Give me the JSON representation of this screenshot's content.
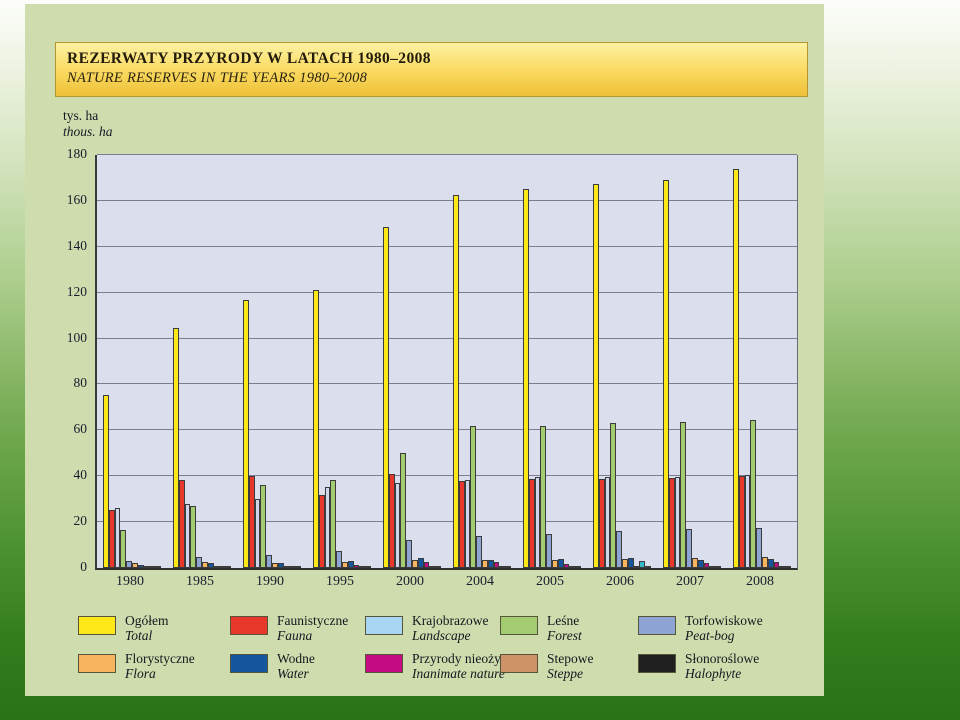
{
  "header": {
    "title_pl": "REZERWATY PRZYRODY W LATACH 1980–2008",
    "title_en": "NATURE RESERVES IN THE YEARS 1980–2008"
  },
  "chart_data": {
    "type": "bar",
    "ylabel_pl": "tys. ha",
    "ylabel_en": "thous. ha",
    "ylim": [
      0,
      180
    ],
    "ytick_step": 20,
    "grid": true,
    "legend_position": "bottom",
    "plot_background": "#dbdfed",
    "categories": [
      "1980",
      "1985",
      "1990",
      "1995",
      "2000",
      "2004",
      "2005",
      "2006",
      "2007",
      "2008"
    ],
    "series": [
      {
        "key": "total",
        "name_pl": "Ogółem",
        "name_en": "Total",
        "color": "#ffe817",
        "values": [
          75.3,
          104.5,
          117.0,
          121.2,
          148.7,
          162.5,
          165.2,
          167.5,
          169.0,
          173.8
        ]
      },
      {
        "key": "fauna",
        "name_pl": "Faunistyczne",
        "name_en": "Fauna",
        "color": "#e8382b",
        "values": [
          25.5,
          38.5,
          40.0,
          32.0,
          41.0,
          38.0,
          39.0,
          39.0,
          39.3,
          40.0
        ]
      },
      {
        "key": "landscape",
        "name_pl": "Krajobrazowe",
        "name_en": "Landscape",
        "color": "#a9d6f2",
        "bar_color": "#cdd6ea",
        "values": [
          26.0,
          28.0,
          30.0,
          35.5,
          37.0,
          38.5,
          39.5,
          39.5,
          39.7,
          40.5
        ]
      },
      {
        "key": "forest",
        "name_pl": "Leśne",
        "name_en": "Forest",
        "color": "#a3cb70",
        "values": [
          16.5,
          27.0,
          36.0,
          38.5,
          50.0,
          62.0,
          62.0,
          63.0,
          63.5,
          64.5
        ]
      },
      {
        "key": "peat-bog",
        "name_pl": "Torfowiskowe",
        "name_en": "Peat-bog",
        "color": "#8ea4d2",
        "values": [
          3.0,
          5.0,
          5.5,
          7.5,
          12.0,
          14.0,
          15.0,
          16.0,
          17.0,
          17.5
        ]
      },
      {
        "key": "flora",
        "name_pl": "Florystyczne",
        "name_en": "Flora",
        "color": "#f8b45e",
        "values": [
          2.0,
          2.5,
          2.0,
          2.5,
          3.5,
          3.5,
          3.5,
          4.0,
          4.5,
          5.0
        ]
      },
      {
        "key": "water",
        "name_pl": "Wodne",
        "name_en": "Water",
        "color": "#14579e",
        "values": [
          1.3,
          2.0,
          2.0,
          3.0,
          4.5,
          3.5,
          4.0,
          4.5,
          3.5,
          4.0
        ]
      },
      {
        "key": "inanimate-nature",
        "name_pl": "Przyrody nieożywionej",
        "name_en": "Inanimate nature",
        "color": "#c50b84",
        "values": [
          0.4,
          0.5,
          0.5,
          1.5,
          2.5,
          2.5,
          1.8,
          0.3,
          2.0,
          2.5
        ]
      },
      {
        "key": "steppe",
        "name_pl": "Stepowe",
        "name_en": "Steppe",
        "color": "#cf9369",
        "values": [
          0.3,
          0.3,
          0.3,
          0.5,
          0.6,
          0.5,
          0.5,
          3.0,
          0.8,
          1.0
        ]
      },
      {
        "key": "halophyte",
        "name_pl": "Słonoroślowe",
        "name_en": "Halophyte",
        "color": "#1f1f1f",
        "values": [
          0.1,
          0.2,
          0.2,
          0.2,
          0.3,
          0.2,
          0.2,
          0.2,
          0.3,
          0.3
        ]
      }
    ],
    "color_overrides": [
      {
        "year": "2006",
        "key": "steppe",
        "color": "#32b8c8"
      }
    ]
  }
}
